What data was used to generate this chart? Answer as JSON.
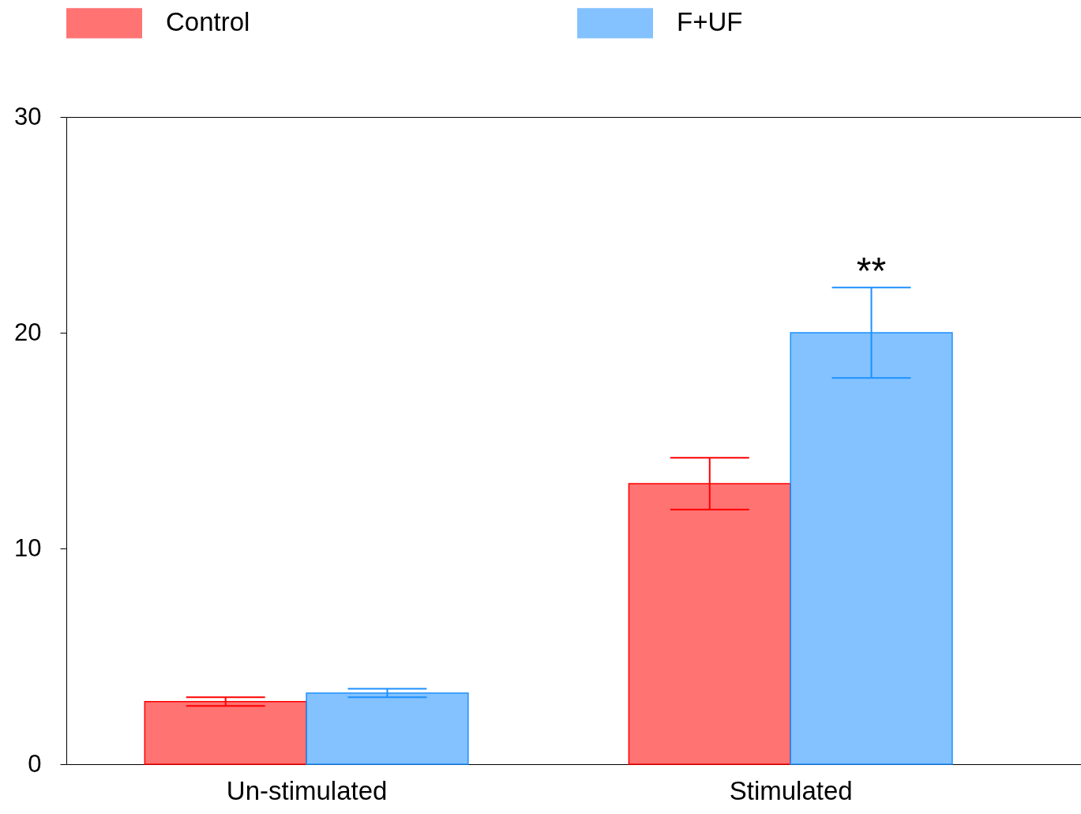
{
  "chart_data": {
    "type": "bar",
    "categories": [
      "Un-stimulated",
      "Stimulated"
    ],
    "series": [
      {
        "name": "Control",
        "color": "#ff0000",
        "values": [
          2.9,
          13.0
        ],
        "errors": [
          0.2,
          1.2
        ]
      },
      {
        "name": "F+UF",
        "color": "#1e90ff",
        "values": [
          3.3,
          20.0
        ],
        "errors": [
          0.2,
          2.1
        ]
      }
    ],
    "ylim": [
      0,
      30
    ],
    "yticks": [
      0,
      10,
      20,
      30
    ],
    "legend": "top",
    "grid": false,
    "annotations": [
      "**"
    ]
  }
}
